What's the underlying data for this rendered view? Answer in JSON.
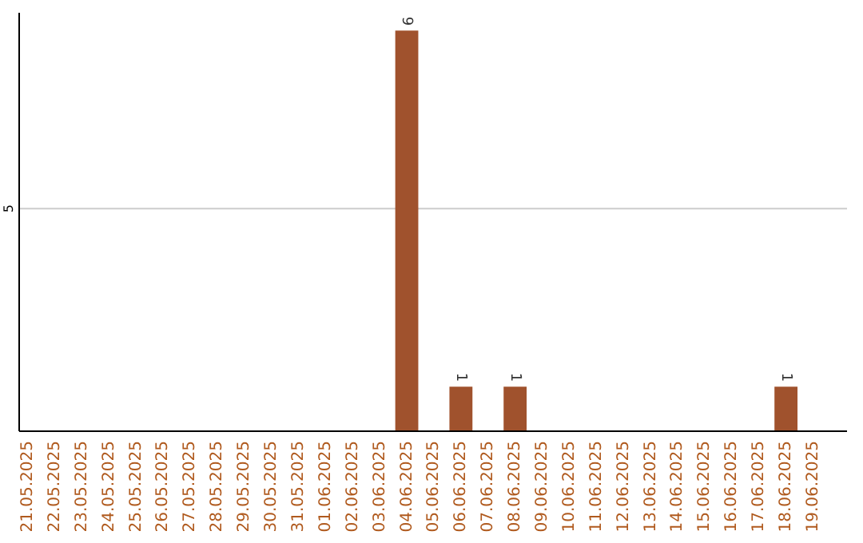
{
  "chart_data": {
    "type": "bar",
    "categories": [
      "21.05.2025",
      "22.05.2025",
      "23.05.2025",
      "24.05.2025",
      "25.05.2025",
      "26.05.2025",
      "27.05.2025",
      "28.05.2025",
      "29.05.2025",
      "30.05.2025",
      "31.05.2025",
      "01.06.2025",
      "02.06.2025",
      "03.06.2025",
      "04.06.2025",
      "05.06.2025",
      "06.06.2025",
      "07.06.2025",
      "08.06.2025",
      "09.06.2025",
      "10.06.2025",
      "11.06.2025",
      "12.06.2025",
      "13.06.2025",
      "14.06.2025",
      "15.06.2025",
      "16.06.2025",
      "17.06.2025",
      "18.06.2025",
      "19.06.2025"
    ],
    "values": [
      null,
      null,
      null,
      null,
      null,
      null,
      null,
      null,
      null,
      null,
      null,
      null,
      null,
      null,
      9,
      null,
      1,
      null,
      1,
      null,
      null,
      null,
      null,
      null,
      null,
      null,
      null,
      null,
      1,
      null
    ],
    "value_labels": [
      null,
      null,
      null,
      null,
      null,
      null,
      null,
      null,
      null,
      null,
      null,
      null,
      null,
      null,
      "9",
      null,
      "1",
      null,
      "1",
      null,
      null,
      null,
      null,
      null,
      null,
      null,
      null,
      null,
      "1",
      null
    ],
    "color": "#a0522d",
    "ylim": [
      0,
      9.4
    ],
    "yticks": [
      5
    ],
    "grid": "y"
  }
}
